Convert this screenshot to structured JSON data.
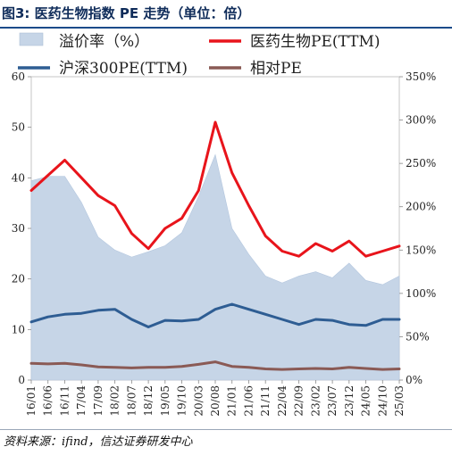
{
  "figure": {
    "title": "图3: 医药生物指数 PE 走势（单位：倍）",
    "source": "资料来源：ifind，信达证券研发中心"
  },
  "chart_data": {
    "type": "line",
    "x": [
      "16/01",
      "16/06",
      "16/11",
      "17/04",
      "17/09",
      "18/02",
      "18/07",
      "18/12",
      "19/05",
      "19/10",
      "20/03",
      "20/08",
      "21/01",
      "21/06",
      "21/11",
      "22/04",
      "22/09",
      "23/02",
      "23/07",
      "23/12",
      "24/05",
      "24/10",
      "25/03"
    ],
    "left_axis": {
      "ylim": [
        0,
        60
      ],
      "ticks": [
        "0",
        "10",
        "20",
        "30",
        "40",
        "50",
        "60"
      ]
    },
    "right_axis": {
      "ylim": [
        0,
        3.5
      ],
      "ticks": [
        "0%",
        "50%",
        "100%",
        "150%",
        "200%",
        "250%",
        "300%",
        "350%"
      ]
    },
    "legend": [
      "溢价率（%）",
      "医药生物PE(TTM)",
      "沪深300PE(TTM)",
      "相对PE"
    ],
    "series": [
      {
        "name": "医药生物PE(TTM)",
        "axis": "left",
        "color": "#e8141b",
        "values": [
          37.5,
          40.5,
          43.5,
          40.0,
          36.5,
          34.5,
          29.0,
          26.0,
          30.0,
          32.0,
          37.5,
          51.0,
          41.0,
          34.5,
          28.5,
          25.5,
          24.5,
          27.0,
          25.5,
          27.5,
          24.5,
          25.5,
          26.5
        ]
      },
      {
        "name": "沪深300PE(TTM)",
        "axis": "left",
        "color": "#2e5d93",
        "values": [
          11.5,
          12.5,
          13.0,
          13.2,
          13.8,
          14.0,
          12.0,
          10.5,
          11.8,
          11.7,
          12.0,
          14.0,
          15.0,
          14.0,
          13.0,
          12.0,
          11.0,
          12.0,
          11.8,
          11.0,
          10.8,
          12.0,
          12.0
        ]
      },
      {
        "name": "相对PE",
        "axis": "left",
        "color": "#8a5a55",
        "values": [
          3.3,
          3.2,
          3.3,
          3.0,
          2.6,
          2.5,
          2.4,
          2.5,
          2.5,
          2.7,
          3.1,
          3.6,
          2.7,
          2.5,
          2.2,
          2.1,
          2.2,
          2.3,
          2.2,
          2.5,
          2.3,
          2.1,
          2.2
        ]
      },
      {
        "name": "溢价率（%）",
        "axis": "right",
        "color": "#c6d5e7",
        "values": [
          2.3,
          2.35,
          2.35,
          2.05,
          1.65,
          1.5,
          1.42,
          1.48,
          1.55,
          1.7,
          2.12,
          2.6,
          1.75,
          1.45,
          1.2,
          1.12,
          1.2,
          1.25,
          1.18,
          1.35,
          1.15,
          1.1,
          1.2
        ]
      }
    ]
  }
}
